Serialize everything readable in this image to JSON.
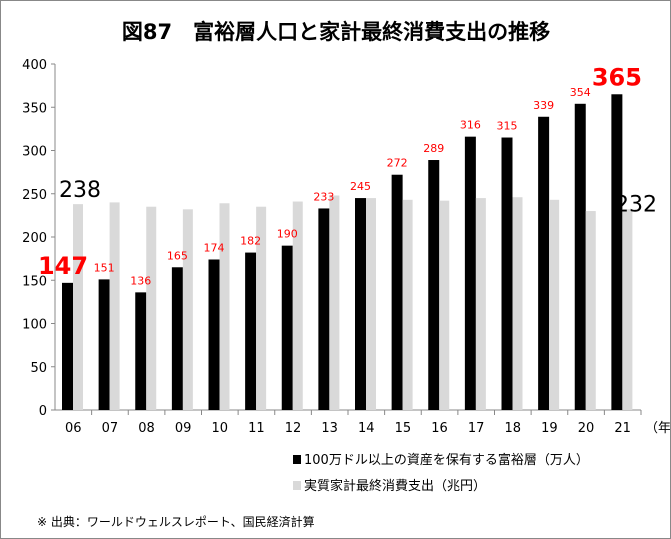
{
  "chart_data": {
    "type": "bar",
    "title": "図87　富裕層人口と家計最終消費支出の推移",
    "categories": [
      "06",
      "07",
      "08",
      "09",
      "10",
      "11",
      "12",
      "13",
      "14",
      "15",
      "16",
      "17",
      "18",
      "19",
      "20",
      "21"
    ],
    "x_unit_label": "（年）",
    "ylim": [
      0,
      400
    ],
    "yticks": [
      0,
      50,
      100,
      150,
      200,
      250,
      300,
      350,
      400
    ],
    "series": [
      {
        "name": "100万ドル以上の資産を保有する富裕層（万人）",
        "color": "#000000",
        "values": [
          147,
          151,
          136,
          165,
          174,
          182,
          190,
          233,
          245,
          272,
          289,
          316,
          315,
          339,
          354,
          365
        ]
      },
      {
        "name": "実質家計最終消費支出（兆円）",
        "color": "#d9d9d9",
        "values": [
          238,
          240,
          235,
          232,
          239,
          235,
          241,
          248,
          245,
          243,
          242,
          245,
          246,
          243,
          230,
          232
        ]
      }
    ],
    "label_color": "#ff0000",
    "callouts": {
      "gray_first": "238",
      "gray_last": "232"
    },
    "source_note": "※ 出典：ワールドウェルスレポート、国民経済計算"
  }
}
